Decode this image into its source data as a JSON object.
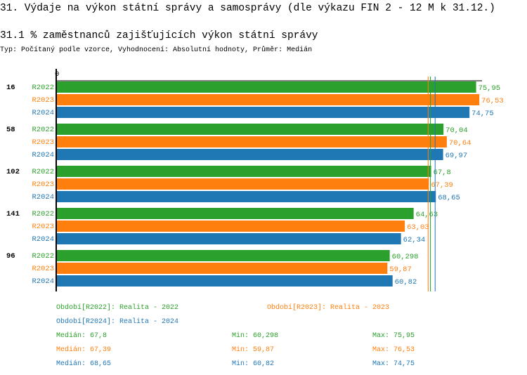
{
  "page_title": "31. Výdaje na výkon státní správy a samosprávy (dle výkazu FIN 2 - 12 M k 31.12.)",
  "chart_data": {
    "type": "bar",
    "orientation": "horizontal",
    "title": "31.1 % zaměstnanců zajišťujících výkon státní správy",
    "subtitle": "Typ: Počítaný podle vzorce, Vyhodnocení: Absolutní hodnoty, Průměr: Medián",
    "axis_zero_label": "0",
    "categories": [
      "16",
      "58",
      "102",
      "141",
      "96"
    ],
    "series": [
      {
        "name": "R2022",
        "color": "#2ca02c",
        "values": [
          75.95,
          70.04,
          67.8,
          64.63,
          60.298
        ],
        "labels": [
          "75,95",
          "70,04",
          "67,8",
          "64,63",
          "60,298"
        ]
      },
      {
        "name": "R2023",
        "color": "#ff7f0e",
        "values": [
          76.53,
          70.64,
          67.39,
          63.03,
          59.87
        ],
        "labels": [
          "76,53",
          "70,64",
          "67,39",
          "63,03",
          "59,87"
        ]
      },
      {
        "name": "R2024",
        "color": "#1f77b4",
        "values": [
          74.75,
          69.97,
          68.65,
          62.34,
          60.82
        ],
        "labels": [
          "74,75",
          "69,97",
          "68,65",
          "62,34",
          "60,82"
        ]
      }
    ],
    "legend": [
      {
        "text": "Období[R2022]: Realita - 2022",
        "color": "#2ca02c"
      },
      {
        "text": "Období[R2023]: Realita - 2023",
        "color": "#ff7f0e"
      },
      {
        "text": "Období[R2024]: Realita - 2024",
        "color": "#1f77b4"
      }
    ],
    "stats": [
      {
        "median": "Medián: 67,8",
        "min": "Min: 60,298",
        "max": "Max: 75,95",
        "median_value": 67.8,
        "color": "#2ca02c"
      },
      {
        "median": "Medián: 67,39",
        "min": "Min: 59,87",
        "max": "Max: 76,53",
        "median_value": 67.39,
        "color": "#ff7f0e"
      },
      {
        "median": "Medián: 68,65",
        "min": "Min: 60,82",
        "max": "Max: 74,75",
        "median_value": 68.65,
        "color": "#1f77b4"
      }
    ]
  }
}
